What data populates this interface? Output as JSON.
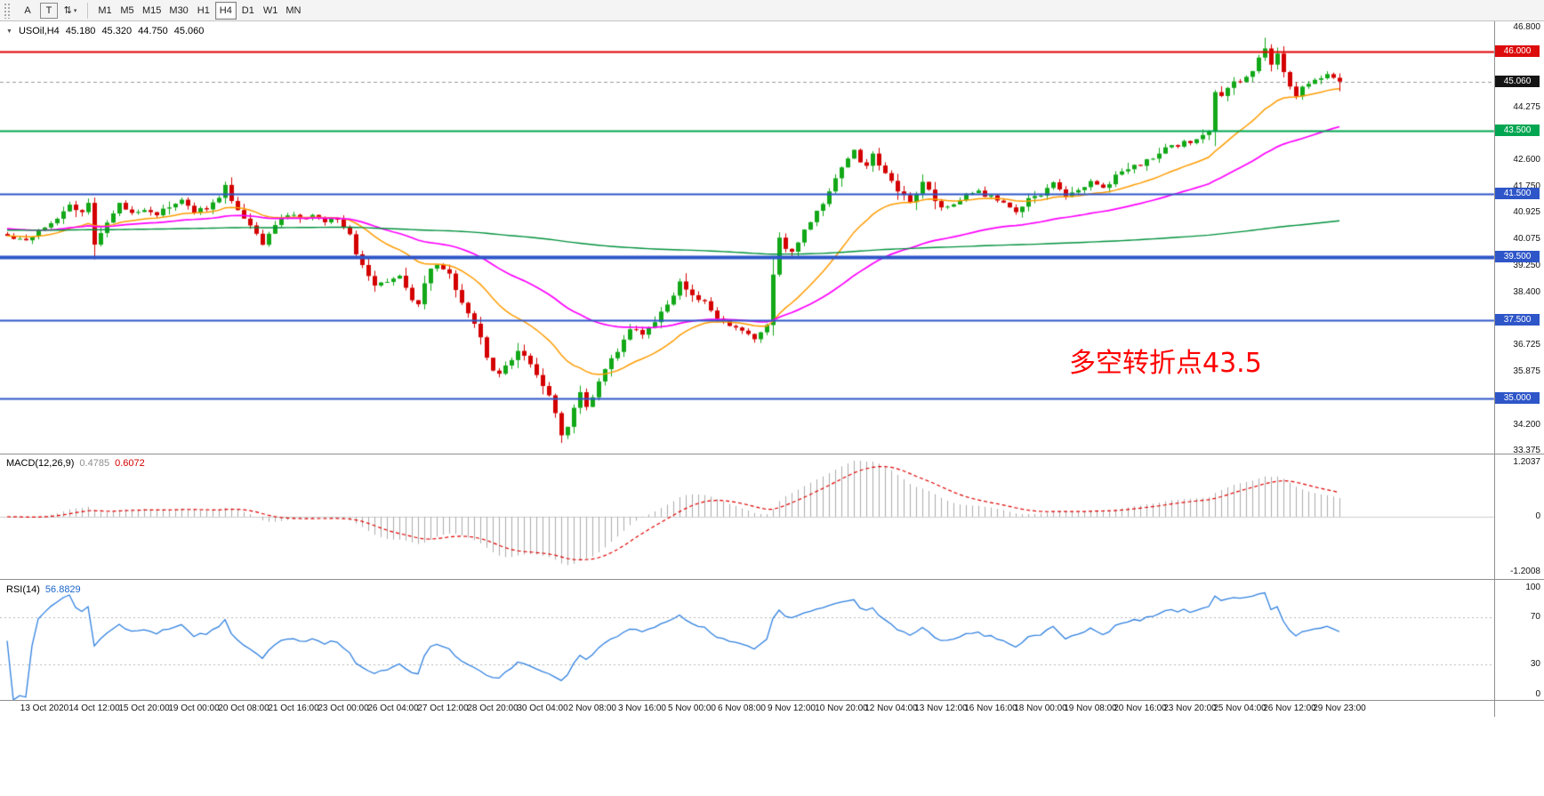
{
  "toolbar": {
    "tools": [
      {
        "label": "A"
      },
      {
        "label": "T"
      },
      {
        "label": "⇅",
        "caret": "▾"
      }
    ],
    "timeframes": [
      "M1",
      "M5",
      "M15",
      "M30",
      "H1",
      "H4",
      "D1",
      "W1",
      "MN"
    ],
    "active_timeframe": "H4"
  },
  "chart": {
    "header": {
      "marker": "▼",
      "symbol": "USOil,H4",
      "open": "45.180",
      "high": "45.320",
      "low": "44.750",
      "close": "45.060"
    },
    "annotation": {
      "text": "多空转折点43.5",
      "color": "#ff0000"
    },
    "y_axis": {
      "ticks": [
        "46.800",
        "44.275",
        "42.600",
        "41.750",
        "40.925",
        "40.075",
        "39.250",
        "38.400",
        "36.725",
        "35.875",
        "34.200",
        "33.375"
      ],
      "badges": [
        {
          "label": "46.000",
          "value": 46.0,
          "bg": "#dd0c0c"
        },
        {
          "label": "45.060",
          "value": 45.06,
          "bg": "#141414"
        },
        {
          "label": "43.500",
          "value": 43.5,
          "bg": "#00a651"
        },
        {
          "label": "41.500",
          "value": 41.5,
          "bg": "#2e56c8"
        },
        {
          "label": "39.500",
          "value": 39.5,
          "bg": "#2e56c8"
        },
        {
          "label": "37.500",
          "value": 37.5,
          "bg": "#2e56c8"
        },
        {
          "label": "35.000",
          "value": 35.0,
          "bg": "#2e56c8"
        }
      ]
    },
    "x_axis": {
      "labels": [
        "13 Oct 2020",
        "14 Oct 12:00",
        "15 Oct 20:00",
        "19 Oct 00:00",
        "20 Oct 08:00",
        "21 Oct 16:00",
        "23 Oct 00:00",
        "26 Oct 04:00",
        "27 Oct 12:00",
        "28 Oct 20:00",
        "30 Oct 04:00",
        "2 Nov 08:00",
        "3 Nov 16:00",
        "5 Nov 00:00",
        "6 Nov 08:00",
        "9 Nov 12:00",
        "10 Nov 20:00",
        "12 Nov 04:00",
        "13 Nov 12:00",
        "16 Nov 16:00",
        "18 Nov 00:00",
        "19 Nov 08:00",
        "20 Nov 16:00",
        "23 Nov 20:00",
        "25 Nov 04:00",
        "26 Nov 12:00",
        "29 Nov 23:00"
      ]
    }
  },
  "macd_panel": {
    "name": "MACD(12,26,9)",
    "value_main": "0.4785",
    "value_signal": "0.6072",
    "axis": {
      "top": "1.2037",
      "mid": "0",
      "bottom": "-1.2008"
    }
  },
  "rsi_panel": {
    "name": "RSI(14)",
    "value": "56.8829",
    "axis": {
      "top": "100",
      "upper": "70",
      "lower": "30",
      "bottom": "0"
    }
  },
  "colors": {
    "bull": "#12a818",
    "bear": "#d40000",
    "macd_histogram": "#ababab",
    "macd_signal": "#e00000",
    "rsi_line": "#2f80e0",
    "current_price_line": "#999999"
  },
  "chart_data": {
    "type": "candlestick",
    "symbol": "USOil",
    "timeframe": "H4",
    "bars": 215,
    "visible_price_range": [
      33.375,
      46.8
    ],
    "last_bar_ohlc": {
      "open": 45.18,
      "high": 45.32,
      "low": 44.75,
      "close": 45.06
    },
    "close_waypoints": [
      [
        0,
        40.15
      ],
      [
        3,
        40.05
      ],
      [
        5,
        40.35
      ],
      [
        8,
        40.75
      ],
      [
        10,
        41.15
      ],
      [
        12,
        40.85
      ],
      [
        13,
        41.2
      ],
      [
        14,
        39.95
      ],
      [
        16,
        40.6
      ],
      [
        18,
        41.15
      ],
      [
        20,
        40.9
      ],
      [
        22,
        41.05
      ],
      [
        24,
        40.85
      ],
      [
        26,
        41.1
      ],
      [
        28,
        41.25
      ],
      [
        30,
        40.95
      ],
      [
        32,
        41.05
      ],
      [
        34,
        41.35
      ],
      [
        35,
        41.8
      ],
      [
        36,
        41.3
      ],
      [
        38,
        40.7
      ],
      [
        40,
        40.2
      ],
      [
        41,
        39.95
      ],
      [
        43,
        40.5
      ],
      [
        45,
        40.85
      ],
      [
        47,
        40.7
      ],
      [
        49,
        40.8
      ],
      [
        51,
        40.65
      ],
      [
        53,
        40.75
      ],
      [
        55,
        40.2
      ],
      [
        56,
        39.55
      ],
      [
        58,
        38.85
      ],
      [
        59,
        38.55
      ],
      [
        61,
        38.75
      ],
      [
        63,
        38.95
      ],
      [
        64,
        38.45
      ],
      [
        66,
        37.95
      ],
      [
        67,
        38.6
      ],
      [
        68,
        39.15
      ],
      [
        69,
        39.3
      ],
      [
        71,
        38.95
      ],
      [
        73,
        38.1
      ],
      [
        75,
        37.35
      ],
      [
        76,
        36.9
      ],
      [
        77,
        36.35
      ],
      [
        78,
        35.95
      ],
      [
        79,
        35.8
      ],
      [
        81,
        36.2
      ],
      [
        82,
        36.5
      ],
      [
        84,
        36.1
      ],
      [
        85,
        35.75
      ],
      [
        86,
        35.45
      ],
      [
        87,
        35.1
      ],
      [
        88,
        34.5
      ],
      [
        89,
        33.8
      ],
      [
        90,
        34.15
      ],
      [
        91,
        34.7
      ],
      [
        92,
        35.15
      ],
      [
        93,
        34.75
      ],
      [
        94,
        35.0
      ],
      [
        95,
        35.6
      ],
      [
        96,
        35.95
      ],
      [
        98,
        36.5
      ],
      [
        100,
        37.25
      ],
      [
        102,
        37.0
      ],
      [
        104,
        37.45
      ],
      [
        106,
        38.0
      ],
      [
        108,
        38.65
      ],
      [
        109,
        38.45
      ],
      [
        110,
        38.3
      ],
      [
        112,
        38.05
      ],
      [
        114,
        37.55
      ],
      [
        116,
        37.3
      ],
      [
        118,
        37.15
      ],
      [
        120,
        36.9
      ],
      [
        122,
        37.35
      ],
      [
        123,
        38.9
      ],
      [
        124,
        40.05
      ],
      [
        125,
        39.8
      ],
      [
        126,
        39.65
      ],
      [
        127,
        40.0
      ],
      [
        128,
        40.35
      ],
      [
        130,
        40.9
      ],
      [
        132,
        41.55
      ],
      [
        134,
        42.35
      ],
      [
        136,
        42.9
      ],
      [
        137,
        42.55
      ],
      [
        138,
        42.35
      ],
      [
        139,
        42.75
      ],
      [
        140,
        42.45
      ],
      [
        141,
        42.15
      ],
      [
        143,
        41.6
      ],
      [
        145,
        41.3
      ],
      [
        147,
        41.85
      ],
      [
        148,
        41.6
      ],
      [
        150,
        41.05
      ],
      [
        152,
        41.2
      ],
      [
        154,
        41.45
      ],
      [
        156,
        41.55
      ],
      [
        158,
        41.4
      ],
      [
        160,
        41.15
      ],
      [
        162,
        40.95
      ],
      [
        164,
        41.3
      ],
      [
        166,
        41.5
      ],
      [
        168,
        41.8
      ],
      [
        170,
        41.45
      ],
      [
        172,
        41.6
      ],
      [
        174,
        41.9
      ],
      [
        176,
        41.7
      ],
      [
        178,
        42.05
      ],
      [
        180,
        42.3
      ],
      [
        182,
        42.45
      ],
      [
        184,
        42.65
      ],
      [
        186,
        42.9
      ],
      [
        188,
        43.05
      ],
      [
        190,
        43.15
      ],
      [
        192,
        43.35
      ],
      [
        193,
        43.5
      ],
      [
        194,
        44.7
      ],
      [
        195,
        44.55
      ],
      [
        196,
        44.9
      ],
      [
        198,
        45.1
      ],
      [
        200,
        45.45
      ],
      [
        201,
        45.8
      ],
      [
        202,
        46.05
      ],
      [
        203,
        45.6
      ],
      [
        204,
        45.9
      ],
      [
        205,
        45.35
      ],
      [
        206,
        44.95
      ],
      [
        207,
        44.6
      ],
      [
        208,
        44.85
      ],
      [
        210,
        45.15
      ],
      [
        212,
        45.3
      ],
      [
        213,
        45.18
      ],
      [
        214,
        45.06
      ]
    ],
    "key_extremes": {
      "low_bar": 89,
      "low": 33.6,
      "high_bar": 202,
      "high": 46.45
    },
    "moving_averages": [
      {
        "name": "ma-fast",
        "color": "#ff9c00",
        "smoothing": 0.09,
        "width": 1.5
      },
      {
        "name": "ma-medium",
        "color": "#ff00ff",
        "smoothing": 0.036,
        "seed": 40.4,
        "width": 1.7
      },
      {
        "name": "ma-slow",
        "color": "#00913c",
        "smoothing": 0.0045,
        "seed": 40.35,
        "width": 1.4
      }
    ],
    "levels": [
      {
        "price": 46.0,
        "color": "#e00000",
        "width": 2
      },
      {
        "price": 43.5,
        "color": "#00a651",
        "width": 2
      },
      {
        "price": 41.5,
        "color": "#2e56c8",
        "width": 2
      },
      {
        "price": 39.5,
        "color": "#2e56c8",
        "width": 4
      },
      {
        "price": 37.5,
        "color": "#2e56c8",
        "width": 2
      },
      {
        "price": 35.0,
        "color": "#2e56c8",
        "width": 2
      }
    ],
    "macd": {
      "fast": 12,
      "slow": 26,
      "signal": 9,
      "current": [
        0.4785,
        0.6072
      ],
      "axis_max": 1.2037,
      "axis_min": -1.2008
    },
    "rsi": {
      "period": 14,
      "current": 56.8829,
      "guide_levels": [
        70,
        30
      ]
    }
  }
}
